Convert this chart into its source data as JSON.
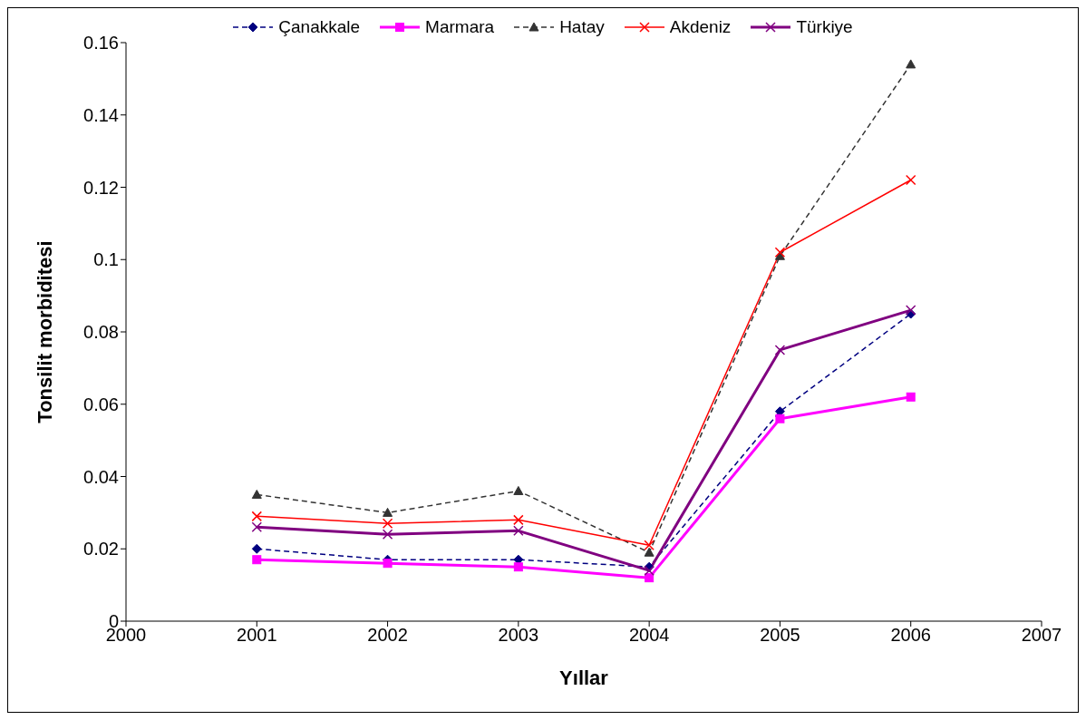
{
  "chart_data": {
    "type": "line",
    "xlabel": "Yıllar",
    "ylabel": "Tonsilit morbiditesi",
    "x": [
      2001,
      2002,
      2003,
      2004,
      2005,
      2006
    ],
    "series": [
      {
        "name": "Çanakkale",
        "color": "#000080",
        "marker": "diamond",
        "line_style": "dashed",
        "values": [
          0.02,
          0.017,
          0.017,
          0.015,
          0.058,
          0.085
        ]
      },
      {
        "name": "Marmara",
        "color": "#ff00ff",
        "marker": "square",
        "line_style": "solid",
        "values": [
          0.017,
          0.016,
          0.015,
          0.012,
          0.056,
          0.062
        ]
      },
      {
        "name": "Hatay",
        "color": "#333333",
        "marker": "triangle",
        "line_style": "dashed",
        "values": [
          0.035,
          0.03,
          0.036,
          0.019,
          0.101,
          0.154
        ]
      },
      {
        "name": "Akdeniz",
        "color": "#ff0000",
        "marker": "cross",
        "line_style": "solid",
        "values": [
          0.029,
          0.027,
          0.028,
          0.021,
          0.102,
          0.122
        ]
      },
      {
        "name": "Türkiye",
        "color": "#800080",
        "marker": "cross",
        "line_style": "solid",
        "values": [
          0.026,
          0.024,
          0.025,
          0.014,
          0.075,
          0.086
        ]
      }
    ],
    "xlim": [
      2000,
      2007
    ],
    "xticks": [
      2000,
      2001,
      2002,
      2003,
      2004,
      2005,
      2006,
      2007
    ],
    "ylim": [
      0,
      0.16
    ],
    "yticks": [
      0,
      0.02,
      0.04,
      0.06,
      0.08,
      0.1,
      0.12,
      0.14,
      0.16
    ],
    "grid": false,
    "legend": "top"
  }
}
